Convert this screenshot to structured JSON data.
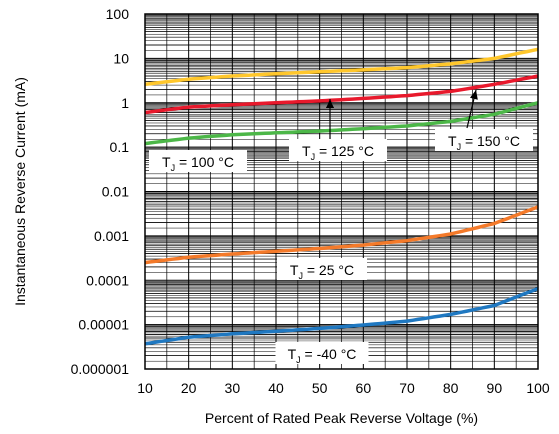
{
  "chart_data": {
    "type": "line",
    "xlabel": "Percent of Rated Peak Reverse Voltage (%)",
    "ylabel": "Instantaneous Reverse Current (mA)",
    "xlim": [
      10,
      100
    ],
    "ylim": [
      1e-06,
      100
    ],
    "yscale": "log",
    "grid": true,
    "x_ticks": [
      "10",
      "20",
      "30",
      "40",
      "50",
      "60",
      "70",
      "80",
      "90",
      "100"
    ],
    "y_ticks": [
      "0.000001",
      "0.00001",
      "0.0001",
      "0.001",
      "0.01",
      "0.1",
      "1",
      "10",
      "100"
    ],
    "series": [
      {
        "name": "T_J = 150 °C",
        "color": "#FFC72C",
        "x": [
          10,
          20,
          30,
          40,
          50,
          60,
          70,
          80,
          90,
          100
        ],
        "y": [
          2.6,
          3.4,
          4.0,
          4.5,
          5.0,
          5.5,
          6.2,
          7.5,
          10,
          16
        ]
      },
      {
        "name": "T_J = 125 °C",
        "color": "#E8192C",
        "x": [
          10,
          20,
          30,
          40,
          50,
          60,
          70,
          80,
          90,
          100
        ],
        "y": [
          0.6,
          0.8,
          0.9,
          1.0,
          1.1,
          1.25,
          1.45,
          1.8,
          2.6,
          4.0
        ]
      },
      {
        "name": "T_J = 100 °C",
        "color": "#4CB748",
        "x": [
          10,
          20,
          30,
          40,
          50,
          60,
          70,
          80,
          90,
          100
        ],
        "y": [
          0.12,
          0.16,
          0.19,
          0.21,
          0.23,
          0.26,
          0.3,
          0.38,
          0.55,
          1.0
        ]
      },
      {
        "name": "T_J = 25 °C",
        "color": "#F47A2A",
        "x": [
          10,
          20,
          30,
          40,
          50,
          60,
          70,
          80,
          90,
          100
        ],
        "y": [
          0.00025,
          0.00033,
          0.00039,
          0.00045,
          0.00052,
          0.00062,
          0.00078,
          0.0011,
          0.0019,
          0.0045
        ]
      },
      {
        "name": "T_J = -40 °C",
        "color": "#1F78C1",
        "x": [
          10,
          20,
          30,
          40,
          50,
          60,
          70,
          80,
          90,
          100
        ],
        "y": [
          3.7e-06,
          5.2e-06,
          6.2e-06,
          7.1e-06,
          8.2e-06,
          9.8e-06,
          1.2e-05,
          1.7e-05,
          2.7e-05,
          6.5e-05
        ]
      }
    ],
    "annotations": [
      {
        "label_main": "T",
        "label_sub": "J",
        "label_rest": " = 150 °C"
      },
      {
        "label_main": "T",
        "label_sub": "J",
        "label_rest": " = 125 °C"
      },
      {
        "label_main": "T",
        "label_sub": "J",
        "label_rest": " = 100 °C"
      },
      {
        "label_main": "T",
        "label_sub": "J",
        "label_rest": " = 25 °C"
      },
      {
        "label_main": "T",
        "label_sub": "J",
        "label_rest": " = -40 °C"
      }
    ]
  }
}
